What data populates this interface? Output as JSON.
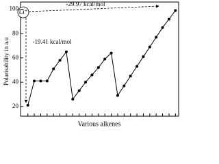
{
  "chart_data": {
    "type": "line",
    "x_label": "Various alkenes",
    "y_label": "Polarisability in a.u",
    "categories": [
      null,
      null,
      null,
      null,
      null,
      null,
      null,
      null,
      null,
      null,
      null,
      null,
      null,
      null,
      null,
      null,
      null,
      null,
      null,
      null,
      null,
      null,
      null,
      null
    ],
    "series": [
      {
        "name": null,
        "color": "#000000",
        "values": [
          21,
          41,
          41,
          41,
          51,
          58,
          65,
          26,
          33,
          40,
          46,
          52,
          59,
          64,
          29,
          37,
          45,
          53,
          61,
          69,
          77,
          85,
          92,
          99
        ]
      }
    ],
    "ylim": [
      12,
      106
    ],
    "yticks": [
      20,
      40,
      60,
      80,
      100
    ],
    "annotations": [
      "Li⁺",
      "-29.97 kcal/mol",
      "-19.41 kcal/mol"
    ]
  }
}
